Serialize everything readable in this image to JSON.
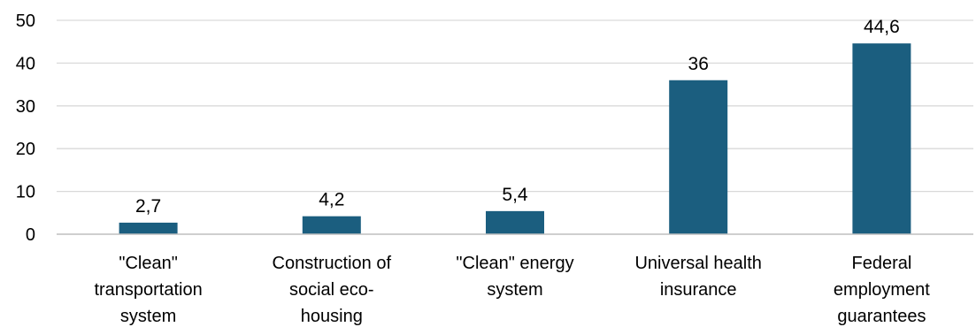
{
  "chart_data": {
    "type": "bar",
    "categories": [
      [
        "\"Clean\"",
        "transportation",
        "system"
      ],
      [
        "Construction of",
        "social eco-",
        "housing"
      ],
      [
        "\"Clean\" energy",
        "system"
      ],
      [
        "Universal health",
        "insurance"
      ],
      [
        "Federal",
        "employment",
        "guarantees"
      ]
    ],
    "values": [
      2.7,
      4.2,
      5.4,
      36,
      44.6
    ],
    "data_labels": [
      "2,7",
      "4,2",
      "5,4",
      "36",
      "44,6"
    ],
    "ylim": [
      0,
      50
    ],
    "yticks": [
      0,
      10,
      20,
      30,
      40,
      50
    ],
    "grid": true,
    "colors": {
      "bar": "#1b5e7f",
      "grid": "#d9d9d9",
      "axis": "#bfbfbf"
    }
  }
}
